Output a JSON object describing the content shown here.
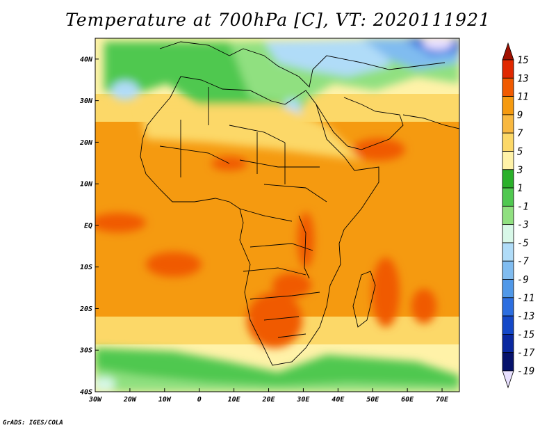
{
  "title": "Temperature at 700hPa [C], VT: 2020111921",
  "credit": "GrADS: IGES/COLA",
  "map": {
    "lon_range": [
      -30,
      75
    ],
    "lat_range": [
      -40,
      45
    ],
    "lon_ticks": [
      {
        "value": -30,
        "label": "30W"
      },
      {
        "value": -20,
        "label": "20W"
      },
      {
        "value": -10,
        "label": "10W"
      },
      {
        "value": 0,
        "label": "0"
      },
      {
        "value": 10,
        "label": "10E"
      },
      {
        "value": 20,
        "label": "20E"
      },
      {
        "value": 30,
        "label": "30E"
      },
      {
        "value": 40,
        "label": "40E"
      },
      {
        "value": 50,
        "label": "50E"
      },
      {
        "value": 60,
        "label": "60E"
      },
      {
        "value": 70,
        "label": "70E"
      }
    ],
    "lat_ticks": [
      {
        "value": 40,
        "label": "40N"
      },
      {
        "value": 30,
        "label": "30N"
      },
      {
        "value": 20,
        "label": "20N"
      },
      {
        "value": 10,
        "label": "10N"
      },
      {
        "value": 0,
        "label": "EQ"
      },
      {
        "value": -10,
        "label": "10S"
      },
      {
        "value": -20,
        "label": "20S"
      },
      {
        "value": -30,
        "label": "30S"
      },
      {
        "value": -40,
        "label": "40S"
      }
    ]
  },
  "colorbar": {
    "labels": [
      "15",
      "13",
      "11",
      "9",
      "7",
      "5",
      "3",
      "1",
      "-1",
      "-3",
      "-5",
      "-7",
      "-9",
      "-11",
      "-13",
      "-15",
      "-17",
      "-19"
    ],
    "colors": [
      "#a01000",
      "#e02800",
      "#f05a00",
      "#f59a10",
      "#f8b840",
      "#fcd868",
      "#fff2a8",
      "#2ab02a",
      "#50c850",
      "#90e080",
      "#d8f8e8",
      "#b0dcf8",
      "#80bcf0",
      "#5098e8",
      "#2c6ee0",
      "#1448c8",
      "#0a28a0",
      "#06126c",
      "#e8e0ff"
    ]
  }
}
